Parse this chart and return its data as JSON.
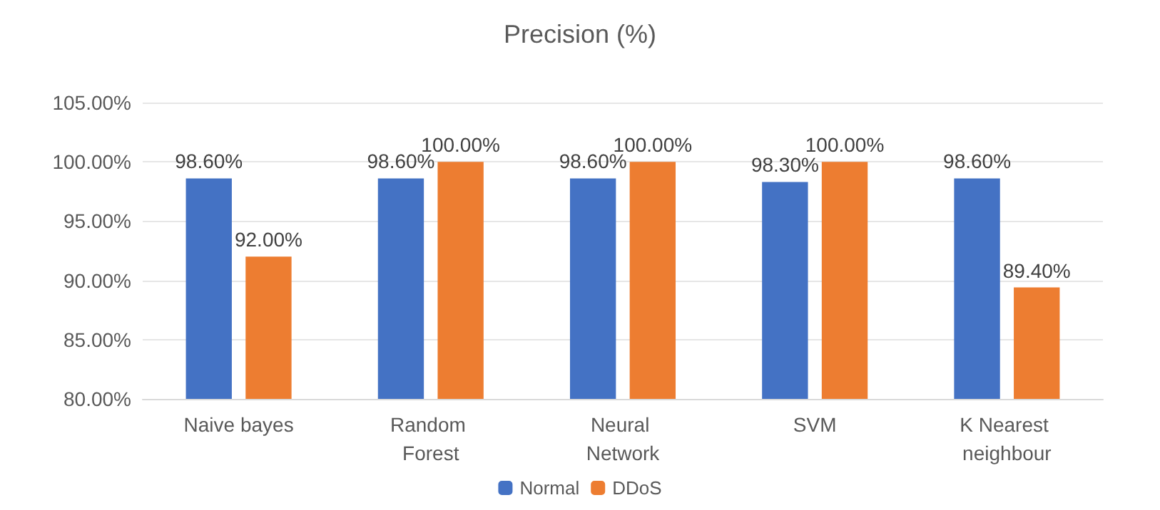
{
  "chart_data": {
    "type": "bar",
    "title": "Precision (%)",
    "categories": [
      "Naive bayes",
      "Random Forest",
      "Neural Network",
      "SVM",
      "K Nearest neighbour"
    ],
    "series": [
      {
        "name": "Normal",
        "color": "#4472c4",
        "values": [
          98.6,
          98.6,
          98.6,
          98.3,
          98.6
        ],
        "value_labels": [
          "98.60%",
          "98.60%",
          "98.60%",
          "98.30%",
          "98.60%"
        ]
      },
      {
        "name": "DDoS",
        "color": "#ed7d31",
        "values": [
          92,
          100,
          100,
          100,
          89.4
        ],
        "value_labels": [
          "92.00%",
          "100.00%",
          "100.00%",
          "100.00%",
          "89.40%"
        ]
      }
    ],
    "ylim": [
      80,
      105
    ],
    "yticks": [
      {
        "value": 80,
        "label": "80.00%"
      },
      {
        "value": 85,
        "label": "85.00%"
      },
      {
        "value": 90,
        "label": "90.00%"
      },
      {
        "value": 95,
        "label": "95.00%"
      },
      {
        "value": 100,
        "label": "100.00%"
      },
      {
        "value": 105,
        "label": "105.00%"
      }
    ],
    "grid": "y",
    "legend": "bottom"
  }
}
